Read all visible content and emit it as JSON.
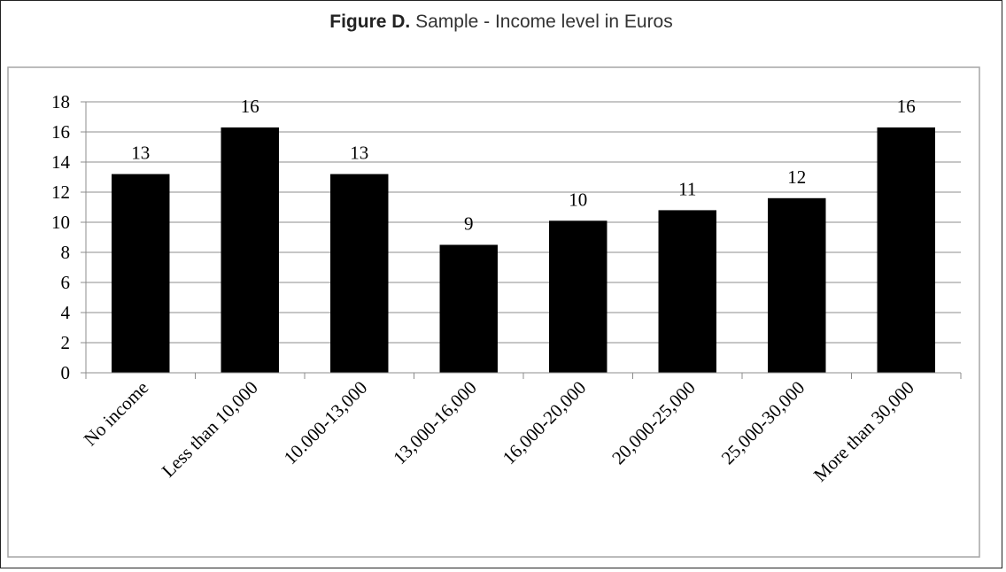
{
  "figure": {
    "label": "Figure D.",
    "caption": "Sample - Income level in Euros"
  },
  "chart_data": {
    "type": "bar",
    "title": "Figure D. Sample - Income level in Euros",
    "xlabel": "",
    "ylabel": "",
    "categories": [
      "No income",
      "Less than 10,000",
      "10.000-13,000",
      "13,000-16,000",
      "16,000-20,000",
      "20,000-25,000",
      "25,000-30,000",
      "More than 30,000"
    ],
    "values": [
      13.2,
      16.3,
      13.2,
      8.5,
      10.1,
      10.8,
      11.6,
      16.3
    ],
    "data_labels": [
      "13",
      "16",
      "13",
      "9",
      "10",
      "11",
      "12",
      "16"
    ],
    "yticks": [
      "0",
      "2",
      "4",
      "6",
      "8",
      "10",
      "12",
      "14",
      "16",
      "18"
    ],
    "ylim": [
      0,
      18
    ],
    "grid": true,
    "legend": "none",
    "bar_color": "#000000"
  }
}
